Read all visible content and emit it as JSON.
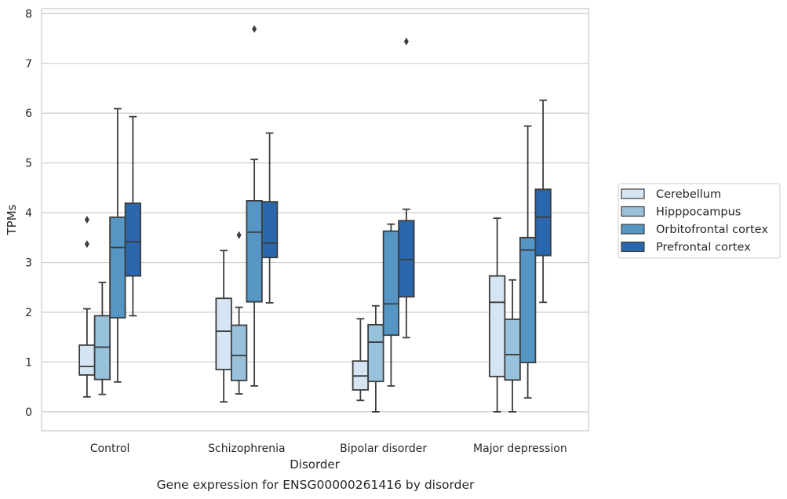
{
  "chart_data": {
    "type": "box",
    "caption": "Gene expression for ENSG00000261416 by disorder",
    "xlabel": "Disorder",
    "ylabel": "TPMs",
    "ylim": [
      -0.38,
      8.1
    ],
    "yticks": [
      0,
      1,
      2,
      3,
      4,
      5,
      6,
      7,
      8
    ],
    "grid": true,
    "legend_position": "right",
    "categories": [
      "Control",
      "Schizophrenia",
      "Bipolar disorder",
      "Major depression"
    ],
    "series": [
      {
        "name": "Cerebellum",
        "color": "#d6e5f4",
        "boxes": [
          {
            "whislo": 0.3,
            "q1": 0.74,
            "med": 0.91,
            "q3": 1.34,
            "whishi": 2.07,
            "fliers": [
              3.37,
              3.86
            ]
          },
          {
            "whislo": 0.2,
            "q1": 0.85,
            "med": 1.62,
            "q3": 2.28,
            "whishi": 3.24,
            "fliers": []
          },
          {
            "whislo": 0.23,
            "q1": 0.44,
            "med": 0.72,
            "q3": 1.02,
            "whishi": 1.87,
            "fliers": []
          },
          {
            "whislo": 0.0,
            "q1": 0.71,
            "med": 2.2,
            "q3": 2.73,
            "whishi": 3.89,
            "fliers": []
          }
        ]
      },
      {
        "name": "Hipppocampus",
        "color": "#98c2dc",
        "boxes": [
          {
            "whislo": 0.35,
            "q1": 0.65,
            "med": 1.3,
            "q3": 1.93,
            "whishi": 2.6,
            "fliers": []
          },
          {
            "whislo": 0.36,
            "q1": 0.63,
            "med": 1.13,
            "q3": 1.74,
            "whishi": 2.1,
            "fliers": [
              3.55
            ]
          },
          {
            "whislo": 0.0,
            "q1": 0.61,
            "med": 1.4,
            "q3": 1.75,
            "whishi": 2.13,
            "fliers": []
          },
          {
            "whislo": 0.0,
            "q1": 0.64,
            "med": 1.15,
            "q3": 1.86,
            "whishi": 2.65,
            "fliers": []
          }
        ]
      },
      {
        "name": "Orbitofrontal cortex",
        "color": "#5696c4",
        "boxes": [
          {
            "whislo": 0.6,
            "q1": 1.89,
            "med": 3.3,
            "q3": 3.91,
            "whishi": 6.09,
            "fliers": []
          },
          {
            "whislo": 0.52,
            "q1": 2.21,
            "med": 3.61,
            "q3": 4.24,
            "whishi": 5.07,
            "fliers": [
              7.69
            ]
          },
          {
            "whislo": 0.52,
            "q1": 1.54,
            "med": 2.17,
            "q3": 3.63,
            "whishi": 3.77,
            "fliers": []
          },
          {
            "whislo": 0.28,
            "q1": 0.99,
            "med": 3.25,
            "q3": 3.5,
            "whishi": 5.74,
            "fliers": []
          }
        ]
      },
      {
        "name": "Prefrontal cortex",
        "color": "#2a67ac",
        "boxes": [
          {
            "whislo": 1.93,
            "q1": 2.73,
            "med": 3.42,
            "q3": 4.19,
            "whishi": 5.93,
            "fliers": []
          },
          {
            "whislo": 2.19,
            "q1": 3.1,
            "med": 3.39,
            "q3": 4.22,
            "whishi": 5.6,
            "fliers": []
          },
          {
            "whislo": 1.49,
            "q1": 2.31,
            "med": 3.06,
            "q3": 3.84,
            "whishi": 4.07,
            "fliers": [
              7.44
            ]
          },
          {
            "whislo": 2.2,
            "q1": 3.14,
            "med": 3.91,
            "q3": 4.47,
            "whishi": 6.26,
            "fliers": []
          }
        ]
      }
    ]
  }
}
